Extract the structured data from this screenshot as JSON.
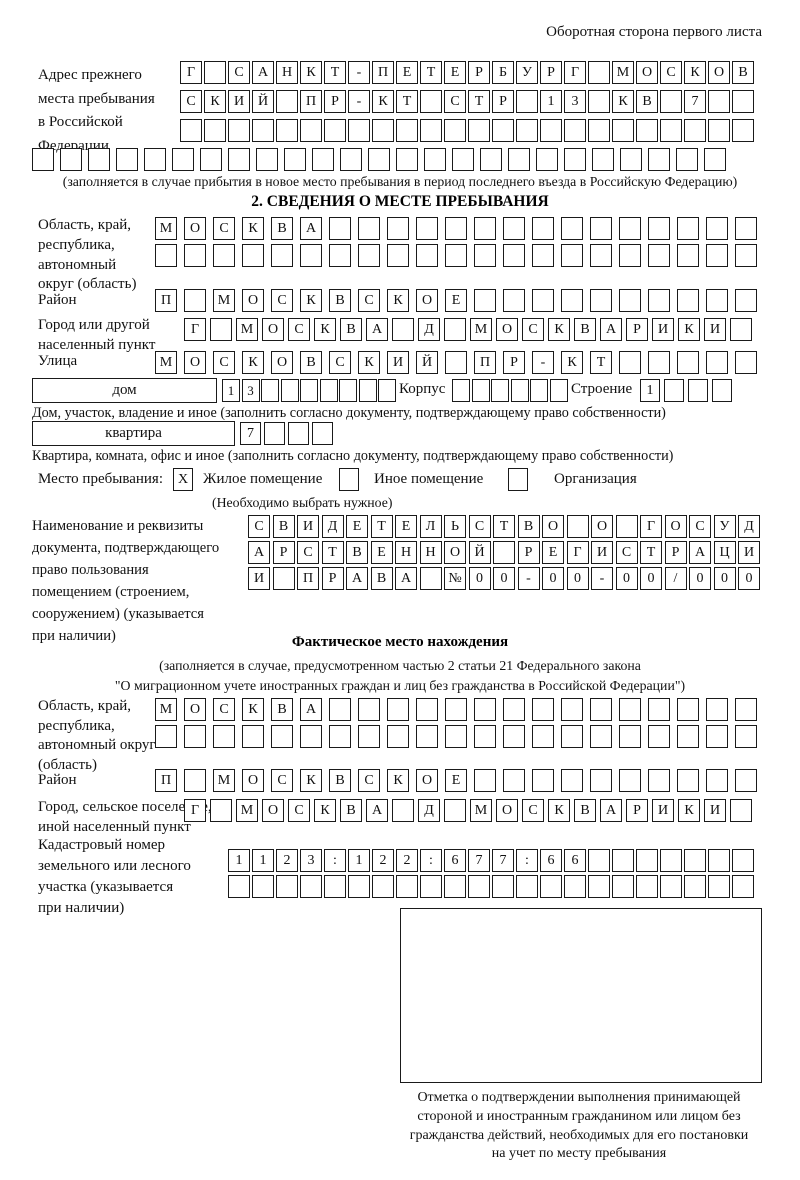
{
  "page": {
    "title_right": "Оборотная сторона первого листа"
  },
  "prev_address": {
    "label_lines": [
      "Адрес прежнего",
      "места пребывания",
      "в Российской",
      "Федерации"
    ],
    "rows": [
      [
        "Г",
        "",
        "С",
        "А",
        "Н",
        "К",
        "Т",
        "-",
        "П",
        "Е",
        "Т",
        "Е",
        "Р",
        "Б",
        "У",
        "Р",
        "Г",
        "",
        "М",
        "О",
        "С",
        "К",
        "О",
        "В"
      ],
      [
        "С",
        "К",
        "И",
        "Й",
        "",
        "П",
        "Р",
        "-",
        "К",
        "Т",
        "",
        "С",
        "Т",
        "Р",
        "",
        "1",
        "3",
        "",
        "К",
        "В",
        "",
        "7",
        "",
        ""
      ],
      [
        "",
        "",
        "",
        "",
        "",
        "",
        "",
        "",
        "",
        "",
        "",
        "",
        "",
        "",
        "",
        "",
        "",
        "",
        "",
        "",
        "",
        "",
        "",
        ""
      ]
    ],
    "row_full": [
      "",
      "",
      "",
      "",
      "",
      "",
      "",
      "",
      "",
      "",
      "",
      "",
      "",
      "",
      "",
      "",
      "",
      "",
      "",
      "",
      "",
      "",
      "",
      "",
      ""
    ],
    "note": "(заполняется в случае прибытия в новое место пребывания в период последнего въезда в Российскую Федерацию)"
  },
  "section2": {
    "title": "2. СВЕДЕНИЯ О МЕСТЕ ПРЕБЫВАНИЯ",
    "oblast": {
      "label_lines": [
        "Область, край,",
        "республика,",
        "автономный",
        "округ (область)"
      ],
      "rows": [
        [
          "М",
          "О",
          "С",
          "К",
          "В",
          "А",
          "",
          "",
          "",
          "",
          "",
          "",
          "",
          "",
          "",
          "",
          "",
          "",
          "",
          "",
          ""
        ],
        [
          "",
          "",
          "",
          "",
          "",
          "",
          "",
          "",
          "",
          "",
          "",
          "",
          "",
          "",
          "",
          "",
          "",
          "",
          "",
          "",
          ""
        ]
      ]
    },
    "raion": {
      "label": "Район",
      "row": [
        "П",
        "",
        "М",
        "О",
        "С",
        "К",
        "В",
        "С",
        "К",
        "О",
        "Е",
        "",
        "",
        "",
        "",
        "",
        "",
        "",
        "",
        "",
        ""
      ]
    },
    "gorod": {
      "label_lines": [
        "Город или другой",
        "населенный пункт"
      ],
      "row": [
        "Г",
        "",
        "М",
        "О",
        "С",
        "К",
        "В",
        "А",
        "",
        "Д",
        "",
        "М",
        "О",
        "С",
        "К",
        "В",
        "А",
        "Р",
        "И",
        "К",
        "И",
        ""
      ]
    },
    "ulitsa": {
      "label": "Улица",
      "row": [
        "М",
        "О",
        "С",
        "К",
        "О",
        "В",
        "С",
        "К",
        "И",
        "Й",
        "",
        "П",
        "Р",
        "-",
        "К",
        "Т",
        "",
        "",
        "",
        "",
        ""
      ]
    },
    "dom": {
      "box_label": "дом",
      "cells": [
        "1",
        "3",
        "",
        "",
        "",
        "",
        "",
        "",
        ""
      ],
      "korpus_label": "Корпус",
      "korpus_cells": [
        "",
        "",
        "",
        "",
        "",
        ""
      ],
      "stroenie_label": "Строение",
      "stroenie_cells": [
        "1",
        "",
        "",
        ""
      ],
      "note": "Дом, участок, владение и иное (заполнить согласно документу, подтверждающему право собственности)"
    },
    "kvartira": {
      "box_label": "квартира",
      "cells": [
        "7",
        "",
        "",
        ""
      ],
      "note": "Квартира, комната, офис и иное (заполнить согласно документу, подтверждающему право собственности)"
    },
    "mesto": {
      "label": "Место пребывания:",
      "options": [
        {
          "label": "Жилое помещение",
          "mark": "X"
        },
        {
          "label": "Иное помещение",
          "mark": ""
        },
        {
          "label": "Организация",
          "mark": ""
        }
      ],
      "note": "(Необходимо выбрать нужное)"
    },
    "document": {
      "label_lines": [
        "Наименование и реквизиты",
        "документа, подтверждающего",
        "право пользования",
        "помещением (строением,",
        "сооружением) (указывается",
        "при наличии)"
      ],
      "rows": [
        [
          "С",
          "В",
          "И",
          "Д",
          "Е",
          "Т",
          "Е",
          "Л",
          "Ь",
          "С",
          "Т",
          "В",
          "О",
          "",
          "О",
          "",
          "Г",
          "О",
          "С",
          "У",
          "Д"
        ],
        [
          "А",
          "Р",
          "С",
          "Т",
          "В",
          "Е",
          "Н",
          "Н",
          "О",
          "Й",
          "",
          "Р",
          "Е",
          "Г",
          "И",
          "С",
          "Т",
          "Р",
          "А",
          "Ц",
          "И"
        ],
        [
          "И",
          "",
          "П",
          "Р",
          "А",
          "В",
          "А",
          "",
          "№",
          "0",
          "0",
          "-",
          "0",
          "0",
          "-",
          "0",
          "0",
          "/",
          "0",
          "0",
          "0"
        ]
      ]
    }
  },
  "fact": {
    "title": "Фактическое место нахождения",
    "note_lines": [
      "(заполняется в случае, предусмотренном частью 2 статьи 21 Федерального закона",
      "\"О миграционном учете иностранных граждан и лиц без гражданства в Российской Федерации\")"
    ],
    "oblast": {
      "label_lines": [
        "Область, край,",
        "республика,",
        "автономный округ",
        "(область)"
      ],
      "rows": [
        [
          "М",
          "О",
          "С",
          "К",
          "В",
          "А",
          "",
          "",
          "",
          "",
          "",
          "",
          "",
          "",
          "",
          "",
          "",
          "",
          "",
          "",
          ""
        ],
        [
          "",
          "",
          "",
          "",
          "",
          "",
          "",
          "",
          "",
          "",
          "",
          "",
          "",
          "",
          "",
          "",
          "",
          "",
          "",
          "",
          ""
        ]
      ]
    },
    "raion": {
      "label": "Район",
      "row": [
        "П",
        "",
        "М",
        "О",
        "С",
        "К",
        "В",
        "С",
        "К",
        "О",
        "Е",
        "",
        "",
        "",
        "",
        "",
        "",
        "",
        "",
        "",
        ""
      ]
    },
    "gorod": {
      "label_lines": [
        "Город, сельское поселение,",
        "иной населенный пункт"
      ],
      "row": [
        "Г",
        "",
        "М",
        "О",
        "С",
        "К",
        "В",
        "А",
        "",
        "Д",
        "",
        "М",
        "О",
        "С",
        "К",
        "В",
        "А",
        "Р",
        "И",
        "К",
        "И",
        ""
      ]
    },
    "kadastr": {
      "label_lines": [
        "Кадастровый номер",
        "земельного или лесного",
        "участка (указывается",
        "при наличии)"
      ],
      "rows": [
        [
          "1",
          "1",
          "2",
          "3",
          ":",
          "1",
          "2",
          "2",
          ":",
          "6",
          "7",
          "7",
          ":",
          "6",
          "6",
          "",
          "",
          "",
          "",
          "",
          "",
          ""
        ],
        [
          "",
          "",
          "",
          "",
          "",
          "",
          "",
          "",
          "",
          "",
          "",
          "",
          "",
          "",
          "",
          "",
          "",
          "",
          "",
          "",
          "",
          ""
        ]
      ]
    },
    "stamp": {
      "caption_lines": [
        "Отметка о подтверждении выполнения принимающей",
        "стороной и иностранным гражданином или лицом без",
        "гражданства действий, необходимых для его постановки",
        "на учет по месту пребывания"
      ]
    }
  }
}
